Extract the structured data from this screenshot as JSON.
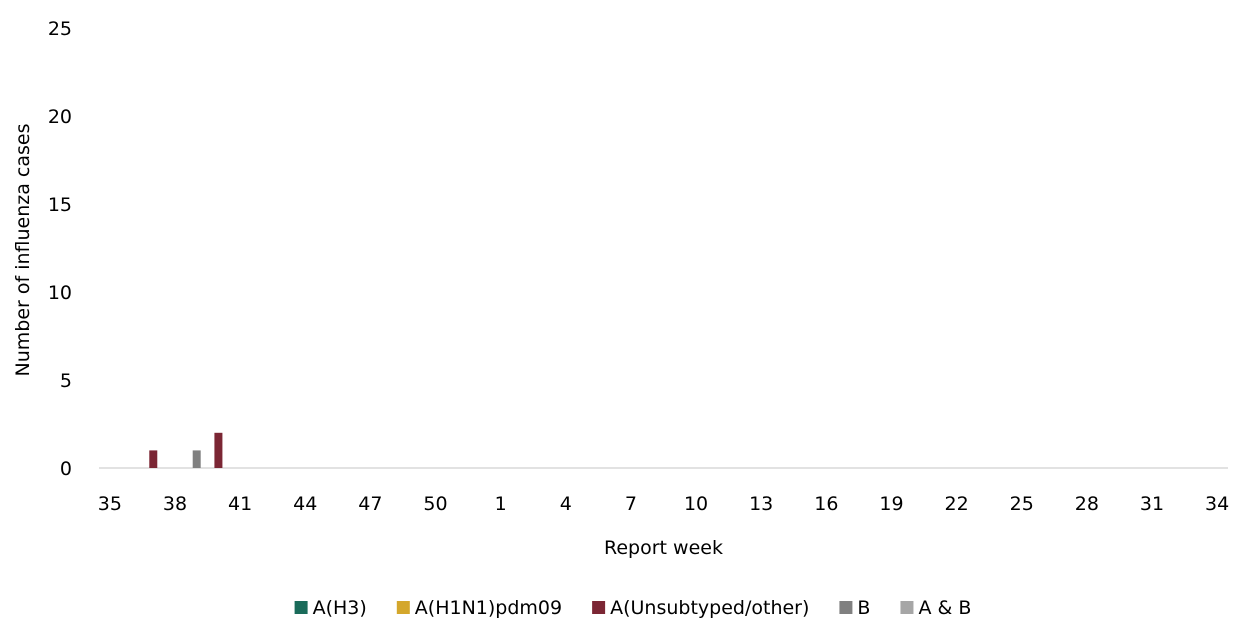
{
  "chart_data": {
    "type": "bar",
    "stacked": true,
    "xlabel": "Report week",
    "ylabel": "Number of influenza cases",
    "ylim": [
      0,
      25
    ],
    "yticks": [
      0,
      5,
      10,
      15,
      20,
      25
    ],
    "grid": false,
    "legend_position": "bottom",
    "categories": [
      35,
      36,
      37,
      38,
      39,
      40,
      41,
      42,
      43,
      44,
      45,
      46,
      47,
      48,
      49,
      50,
      51,
      52,
      1,
      2,
      3,
      4,
      5,
      6,
      7,
      8,
      9,
      10,
      11,
      12,
      13,
      14,
      15,
      16,
      17,
      18,
      19,
      20,
      21,
      22,
      23,
      24,
      25,
      26,
      27,
      28,
      29,
      30,
      31,
      32,
      33,
      34
    ],
    "xtick_labels": [
      "35",
      "38",
      "41",
      "44",
      "47",
      "50",
      "1",
      "4",
      "7",
      "10",
      "13",
      "16",
      "19",
      "22",
      "25",
      "28",
      "31",
      "34"
    ],
    "series": [
      {
        "name": "A(H3)",
        "color": "#1a6b5a",
        "points": []
      },
      {
        "name": "A(H1N1)pdm09",
        "color": "#d4a72c",
        "points": []
      },
      {
        "name": "A(Unsubtyped/other)",
        "color": "#7b2634",
        "points": [
          {
            "week": 37,
            "value": 1
          },
          {
            "week": 40,
            "value": 2
          }
        ]
      },
      {
        "name": "B",
        "color": "#808080",
        "points": [
          {
            "week": 39,
            "value": 1
          }
        ]
      },
      {
        "name": "A & B",
        "color": "#a6a6a6",
        "points": []
      }
    ]
  }
}
